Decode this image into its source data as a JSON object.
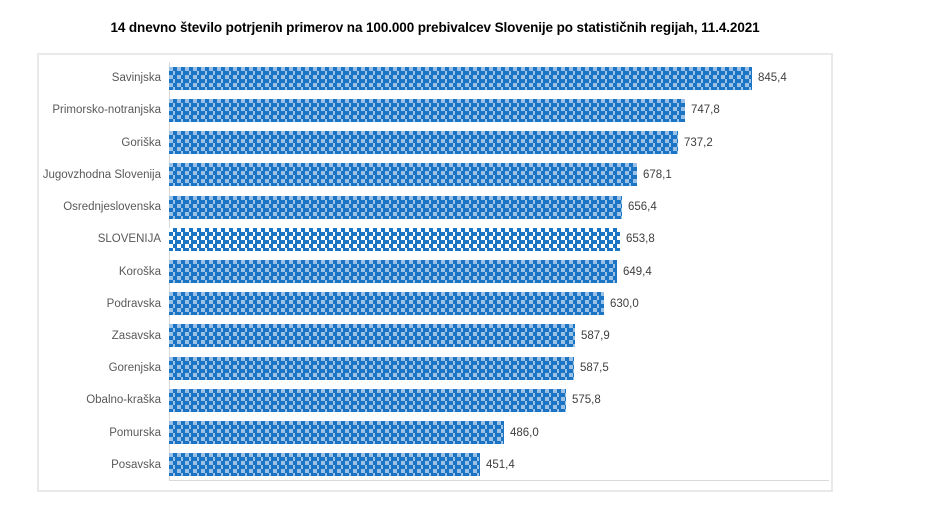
{
  "chart_data": {
    "type": "bar",
    "orientation": "horizontal",
    "title": "14 dnevno število potrjenih primerov na 100.000  prebivalcev Slovenije po statističnih regijah, 11.4.2021",
    "categories": [
      "Savinjska",
      "Primorsko-notranjska",
      "Goriška",
      "Jugovzhodna Slovenija",
      "Osrednjeslovenska",
      "SLOVENIJA",
      "Koroška",
      "Podravska",
      "Zasavska",
      "Gorenjska",
      "Obalno-kraška",
      "Pomurska",
      "Posavska"
    ],
    "values": [
      845.4,
      747.8,
      737.2,
      678.1,
      656.4,
      653.8,
      649.4,
      630.0,
      587.9,
      587.5,
      575.8,
      486.0,
      451.4
    ],
    "value_labels": [
      "845,4",
      "747,8",
      "737,2",
      "678,1",
      "656,4",
      "653,8",
      "649,4",
      "630,0",
      "587,9",
      "587,5",
      "575,8",
      "486,0",
      "451,4"
    ],
    "highlight_category": "SLOVENIJA",
    "xlim": [
      0,
      942
    ],
    "grid": false,
    "legend": "none",
    "bar_pattern": "dotted-checker",
    "colors": {
      "pattern_foreground": "#1b74c4",
      "pattern_background": "#9bc2e6",
      "highlight_background": "#ffffff",
      "axis_line": "#d9d9d9",
      "frame_border": "#e9e9e9",
      "category_label": "#595959",
      "value_label": "#3f3f3f",
      "title": "#000000"
    }
  }
}
